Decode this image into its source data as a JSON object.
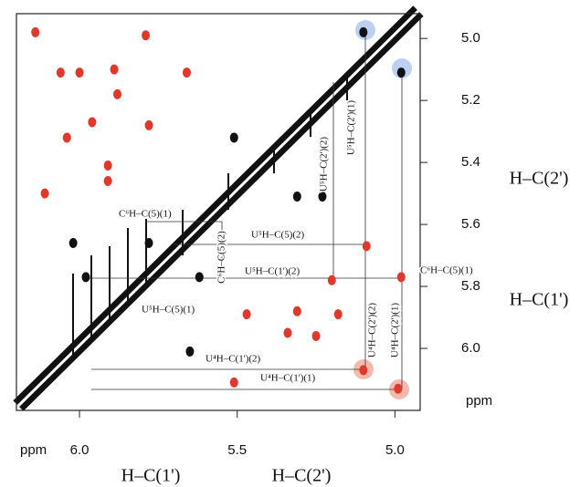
{
  "chart_data": {
    "type": "scatter",
    "x_label": "H–C(1')",
    "x_label_2": "H–C(2')",
    "y_label": "H–C(2')",
    "y_label_2": "H–C(1')",
    "x_unit": "ppm",
    "y_unit": "ppm",
    "xlim": [
      6.2,
      4.92
    ],
    "ylim": [
      6.2,
      4.92
    ],
    "xticks": [
      {
        "value": 6,
        "label": "6.0"
      },
      5.5,
      {
        "value": 5,
        "label": "5.0"
      }
    ],
    "yticks": [
      {
        "value": 5,
        "label": "5.0"
      },
      5.2,
      5.4,
      5.6,
      5.8,
      {
        "value": 6,
        "label": "6.0"
      }
    ],
    "series": [
      {
        "color": "#e0392b",
        "x": [
          6.14,
          6.06,
          6.0,
          5.89,
          5.79,
          5.66,
          5.88,
          5.96,
          6.04,
          5.91,
          5.91,
          5.78,
          6.11,
          5.47,
          5.34,
          5.25,
          5.31,
          5.51,
          5.1,
          4.99,
          5.09,
          5.2,
          4.98,
          5.18
        ],
        "values": [
          4.98,
          5.11,
          5.11,
          5.1,
          4.99,
          5.11,
          5.18,
          5.27,
          5.32,
          5.41,
          5.46,
          5.28,
          5.5,
          5.89,
          5.95,
          5.96,
          5.88,
          6.11,
          6.07,
          6.13,
          5.67,
          5.78,
          5.77,
          5.89
        ]
      },
      {
        "color": "#111111",
        "x": [
          5.1,
          4.98,
          5.51,
          5.23,
          6.02,
          5.98,
          5.62,
          5.78,
          5.65,
          5.31
        ],
        "values": [
          4.98,
          5.11,
          5.32,
          5.51,
          5.66,
          5.77,
          5.77,
          5.66,
          6.01,
          5.51
        ]
      }
    ],
    "annotations": [
      "C⁶H–C(5)(1)",
      "U⁵H–C(5)(2)",
      "C⁶H–C(5)(2)",
      "U⁵H–C(1')(2)",
      "C⁶H–C(5)(1)",
      "U⁵H–C(5)(1)",
      "U⁴H–C(1')(2)",
      "U⁴H–C(1')(1)",
      "U⁵H–C(2')(2)",
      "U⁵H–C(2')(1)",
      "U⁴H–C(2')(2)",
      "U⁴H–C(2')(1)"
    ]
  }
}
